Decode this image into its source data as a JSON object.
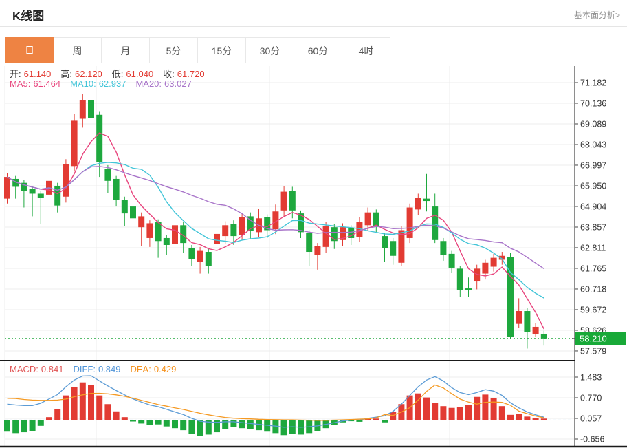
{
  "header": {
    "title": "K线图",
    "link": "基本面分析>"
  },
  "tabs": [
    {
      "label": "日",
      "active": true
    },
    {
      "label": "周",
      "active": false
    },
    {
      "label": "月",
      "active": false
    },
    {
      "label": "5分",
      "active": false
    },
    {
      "label": "15分",
      "active": false
    },
    {
      "label": "30分",
      "active": false
    },
    {
      "label": "60分",
      "active": false
    },
    {
      "label": "4时",
      "active": false
    }
  ],
  "info": {
    "ohlc": [
      {
        "label": "开:",
        "value": "61.140"
      },
      {
        "label": "高:",
        "value": "62.120"
      },
      {
        "label": "低:",
        "value": "61.040"
      },
      {
        "label": "收:",
        "value": "61.720"
      }
    ],
    "ma": [
      {
        "label": "MA5:",
        "value": "61.464",
        "color": "#e8447d"
      },
      {
        "label": "MA10:",
        "value": "62.937",
        "color": "#43c5d8"
      },
      {
        "label": "MA20:",
        "value": "63.027",
        "color": "#a874c9"
      }
    ]
  },
  "macd_info": [
    {
      "label": "MACD:",
      "value": "0.841",
      "color": "#e05353"
    },
    {
      "label": "DIFF:",
      "value": "0.849",
      "color": "#4f94d8"
    },
    {
      "label": "DEA:",
      "value": "0.429",
      "color": "#f5921e"
    }
  ],
  "price_tag": {
    "value": "58.210"
  },
  "colors": {
    "up": "#e23b33",
    "down": "#1ea83e",
    "ma5": "#e8447d",
    "ma10": "#43c5d8",
    "ma20": "#a874c9",
    "diff": "#5b9bd5",
    "dea": "#f59a23",
    "tab_active_bg": "#ee8343",
    "price_tag_bg": "#18a938",
    "grid": "#ececec",
    "axis": "#444444",
    "label": "#333333",
    "ohlc_value": "#e23b33",
    "price_line": "#22a83e",
    "zero_dash": "#b8d4ee",
    "separator": "#1a1a1a"
  },
  "chart_data": {
    "type": "candlestick+macd",
    "legend_position": "top-left-overlay",
    "grid": true,
    "y_axis_labels": [
      "71.182",
      "70.136",
      "69.089",
      "68.043",
      "66.997",
      "65.950",
      "64.904",
      "63.857",
      "62.811",
      "61.765",
      "60.718",
      "59.672",
      "58.626",
      "57.579"
    ],
    "y_range": [
      57.579,
      71.182
    ],
    "price_line": 58.21,
    "macd_axis_labels": [
      "1.483",
      "0.770",
      "0.057",
      "-0.656"
    ],
    "macd_range": [
      -0.656,
      1.483
    ],
    "vertical_gridlines_x": [
      7,
      140,
      392,
      654
    ],
    "candles_ohlc_format": "[open, high, low, close]",
    "candles": [
      [
        65.3,
        66.6,
        65.05,
        66.4
      ],
      [
        66.3,
        66.45,
        65.3,
        65.9
      ],
      [
        66.1,
        66.25,
        64.85,
        65.7
      ],
      [
        65.8,
        65.95,
        64.4,
        65.55
      ],
      [
        65.55,
        65.7,
        64.0,
        65.35
      ],
      [
        65.5,
        66.45,
        65.2,
        66.2
      ],
      [
        65.95,
        66.1,
        64.6,
        64.95
      ],
      [
        65.4,
        67.3,
        65.1,
        67.05
      ],
      [
        66.95,
        69.6,
        66.7,
        69.25
      ],
      [
        69.35,
        70.6,
        68.9,
        70.3
      ],
      [
        70.3,
        70.5,
        68.6,
        69.4
      ],
      [
        69.55,
        69.7,
        66.4,
        67.15
      ],
      [
        66.8,
        67.0,
        65.6,
        66.2
      ],
      [
        66.3,
        66.45,
        64.9,
        65.25
      ],
      [
        65.25,
        65.4,
        63.9,
        64.55
      ],
      [
        64.9,
        65.05,
        63.6,
        64.3
      ],
      [
        63.85,
        64.6,
        62.9,
        64.4
      ],
      [
        63.3,
        64.2,
        62.85,
        64.05
      ],
      [
        64.1,
        64.25,
        62.3,
        63.15
      ],
      [
        63.3,
        63.45,
        62.45,
        62.95
      ],
      [
        63.0,
        64.1,
        62.6,
        63.95
      ],
      [
        63.95,
        64.1,
        62.55,
        63.05
      ],
      [
        62.8,
        62.95,
        61.9,
        62.25
      ],
      [
        62.1,
        62.85,
        61.5,
        62.65
      ],
      [
        62.6,
        62.75,
        61.5,
        61.9
      ],
      [
        62.99,
        63.7,
        62.6,
        63.51
      ],
      [
        63.4,
        64.15,
        63.0,
        63.95
      ],
      [
        64.0,
        64.2,
        62.95,
        63.4
      ],
      [
        63.45,
        64.55,
        63.2,
        64.35
      ],
      [
        64.4,
        64.6,
        63.25,
        63.65
      ],
      [
        63.6,
        64.8,
        63.35,
        64.3
      ],
      [
        64.35,
        64.5,
        63.3,
        63.7
      ],
      [
        63.75,
        65.0,
        63.5,
        64.65
      ],
      [
        64.7,
        65.95,
        64.4,
        65.65
      ],
      [
        65.7,
        65.9,
        64.3,
        64.7
      ],
      [
        64.55,
        64.7,
        63.3,
        63.6
      ],
      [
        63.55,
        63.7,
        61.9,
        62.6
      ],
      [
        62.45,
        63.05,
        61.7,
        62.9
      ],
      [
        62.85,
        64.1,
        62.55,
        63.9
      ],
      [
        63.85,
        64.0,
        62.75,
        63.15
      ],
      [
        63.2,
        64.05,
        62.9,
        63.85
      ],
      [
        63.8,
        63.95,
        62.95,
        63.3
      ],
      [
        63.35,
        64.35,
        63.1,
        64.1
      ],
      [
        63.95,
        64.85,
        63.65,
        64.6
      ],
      [
        64.6,
        64.75,
        63.55,
        63.9
      ],
      [
        63.4,
        63.55,
        62.1,
        62.8
      ],
      [
        63.15,
        63.3,
        61.95,
        62.4
      ],
      [
        62.05,
        63.9,
        61.9,
        63.7
      ],
      [
        63.3,
        65.05,
        63.05,
        64.85
      ],
      [
        64.75,
        65.55,
        64.45,
        65.35
      ],
      [
        65.3,
        66.55,
        64.65,
        65.18
      ],
      [
        64.9,
        65.55,
        63.05,
        63.2
      ],
      [
        63.15,
        63.3,
        62.15,
        62.45
      ],
      [
        62.5,
        62.65,
        61.55,
        61.8
      ],
      [
        61.75,
        61.9,
        60.3,
        60.65
      ],
      [
        60.75,
        61.3,
        60.3,
        60.65
      ],
      [
        61.1,
        61.95,
        60.7,
        61.75
      ],
      [
        61.5,
        62.2,
        61.2,
        62.05
      ],
      [
        61.85,
        62.5,
        61.6,
        62.3
      ],
      [
        62.2,
        62.6,
        61.95,
        62.4
      ],
      [
        62.35,
        62.55,
        58.2,
        58.3
      ],
      [
        58.95,
        60.25,
        58.75,
        59.6
      ],
      [
        59.6,
        59.75,
        57.7,
        58.55
      ],
      [
        58.45,
        59.0,
        58.3,
        58.8
      ],
      [
        58.45,
        58.6,
        57.85,
        58.21
      ]
    ],
    "ma_lines": {
      "note": "MA5/MA10/MA20 computed as clamped moving averages of closes",
      "windows": [
        5,
        10,
        20
      ]
    },
    "macd": {
      "histogram": [
        -0.4,
        -0.45,
        -0.42,
        -0.38,
        -0.2,
        0.1,
        0.38,
        0.85,
        1.15,
        1.3,
        1.22,
        0.85,
        0.55,
        0.3,
        0.1,
        -0.05,
        -0.12,
        -0.18,
        -0.15,
        -0.22,
        -0.28,
        -0.35,
        -0.48,
        -0.55,
        -0.5,
        -0.42,
        -0.3,
        -0.25,
        -0.28,
        -0.32,
        -0.35,
        -0.4,
        -0.45,
        -0.52,
        -0.48,
        -0.5,
        -0.45,
        -0.38,
        -0.28,
        -0.18,
        -0.08,
        -0.04,
        -0.06,
        0.04,
        0.05,
        -0.08,
        0.28,
        0.55,
        0.85,
        0.92,
        0.78,
        0.58,
        0.48,
        0.42,
        0.45,
        0.52,
        0.8,
        0.88,
        0.75,
        0.48,
        0.18,
        0.22,
        0.12,
        0.08,
        0.05
      ],
      "diff": [
        0.55,
        0.52,
        0.5,
        0.5,
        0.58,
        0.73,
        0.88,
        1.15,
        1.38,
        1.52,
        1.53,
        1.35,
        1.18,
        1.02,
        0.87,
        0.73,
        0.62,
        0.52,
        0.46,
        0.37,
        0.28,
        0.19,
        0.06,
        -0.04,
        -0.07,
        -0.08,
        -0.06,
        -0.06,
        -0.09,
        -0.12,
        -0.15,
        -0.18,
        -0.21,
        -0.25,
        -0.23,
        -0.25,
        -0.23,
        -0.2,
        -0.15,
        -0.09,
        -0.03,
        0.0,
        0.0,
        0.06,
        0.1,
        0.15,
        0.3,
        0.55,
        0.85,
        1.15,
        1.38,
        1.5,
        1.35,
        1.12,
        0.95,
        0.88,
        0.95,
        1.05,
        1.0,
        0.85,
        0.6,
        0.42,
        0.28,
        0.18,
        0.1
      ],
      "dea": [
        0.75,
        0.745,
        0.71,
        0.69,
        0.68,
        0.68,
        0.69,
        0.725,
        0.805,
        0.87,
        0.92,
        0.925,
        0.905,
        0.87,
        0.82,
        0.755,
        0.68,
        0.61,
        0.535,
        0.48,
        0.42,
        0.365,
        0.3,
        0.235,
        0.18,
        0.13,
        0.09,
        0.065,
        0.05,
        0.04,
        0.025,
        0.02,
        0.015,
        0.01,
        0.01,
        0.0,
        -0.005,
        -0.01,
        -0.01,
        0.0,
        0.01,
        0.02,
        0.03,
        0.04,
        0.075,
        0.19,
        0.16,
        0.275,
        0.425,
        0.69,
        0.99,
        1.21,
        1.11,
        0.91,
        0.725,
        0.62,
        0.55,
        0.61,
        0.625,
        0.61,
        0.51,
        0.31,
        0.22,
        0.14,
        0.075
      ]
    }
  }
}
